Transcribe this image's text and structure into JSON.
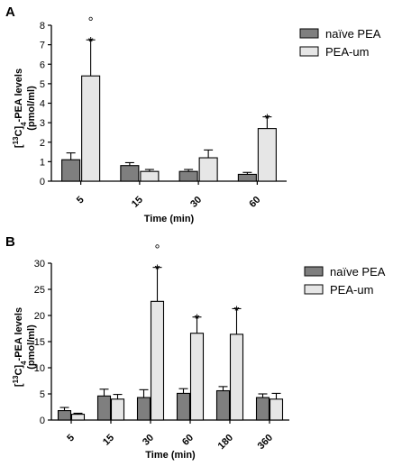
{
  "chart_data": [
    {
      "panel": "A",
      "type": "bar",
      "categories": [
        "5",
        "15",
        "30",
        "60"
      ],
      "series": [
        {
          "name": "naïve PEA",
          "color": "#7f7f7f",
          "values": [
            1.1,
            0.8,
            0.5,
            0.35
          ],
          "errors": [
            0.35,
            0.15,
            0.1,
            0.1
          ]
        },
        {
          "name": "PEA-um",
          "color": "#e6e6e6",
          "values": [
            5.4,
            0.5,
            1.2,
            2.7
          ],
          "errors": [
            1.85,
            0.1,
            0.4,
            0.6
          ]
        }
      ],
      "annotations": [
        {
          "category": "5",
          "series": "PEA-um",
          "marks": [
            "°",
            "*"
          ]
        },
        {
          "category": "60",
          "series": "PEA-um",
          "marks": [
            "*"
          ]
        }
      ],
      "ylabel": "[13C]4-PEA levels (pmol/ml)",
      "ylabel_parts": {
        "pre": "[",
        "sup": "13",
        "mid": "C]",
        "sub": "4",
        "post": "-PEA levels",
        "unit": "(pmol/ml)"
      },
      "xlabel": "Time (min)",
      "ylim": [
        0,
        8
      ],
      "yticks": [
        "0",
        "1",
        "2",
        "3",
        "4",
        "5",
        "6",
        "7",
        "8"
      ],
      "legend": "top-right"
    },
    {
      "panel": "B",
      "type": "bar",
      "categories": [
        "5",
        "15",
        "30",
        "60",
        "180",
        "360"
      ],
      "series": [
        {
          "name": "naïve PEA",
          "color": "#7f7f7f",
          "values": [
            1.8,
            4.6,
            4.3,
            5.1,
            5.6,
            4.3
          ],
          "errors": [
            0.6,
            1.3,
            1.5,
            0.9,
            0.8,
            0.7
          ]
        },
        {
          "name": "PEA-um",
          "color": "#e6e6e6",
          "values": [
            1.1,
            4.0,
            22.7,
            16.6,
            16.4,
            4.0
          ],
          "errors": [
            0.2,
            0.9,
            6.5,
            3.1,
            4.9,
            1.1
          ]
        }
      ],
      "annotations": [
        {
          "category": "30",
          "series": "PEA-um",
          "marks": [
            "°",
            "*"
          ]
        },
        {
          "category": "60",
          "series": "PEA-um",
          "marks": [
            "*"
          ]
        },
        {
          "category": "180",
          "series": "PEA-um",
          "marks": [
            "*"
          ]
        }
      ],
      "ylabel": "[13C]4-PEA levels (pmol/ml)",
      "ylabel_parts": {
        "pre": "[",
        "sup": "13",
        "mid": "C]",
        "sub": "4",
        "post": "-PEA levels",
        "unit": "(pmol/ml)"
      },
      "xlabel": "Time (min)",
      "ylim": [
        0,
        30
      ],
      "yticks": [
        "0",
        "5",
        "10",
        "15",
        "20",
        "25",
        "30"
      ],
      "legend": "top-right"
    }
  ]
}
